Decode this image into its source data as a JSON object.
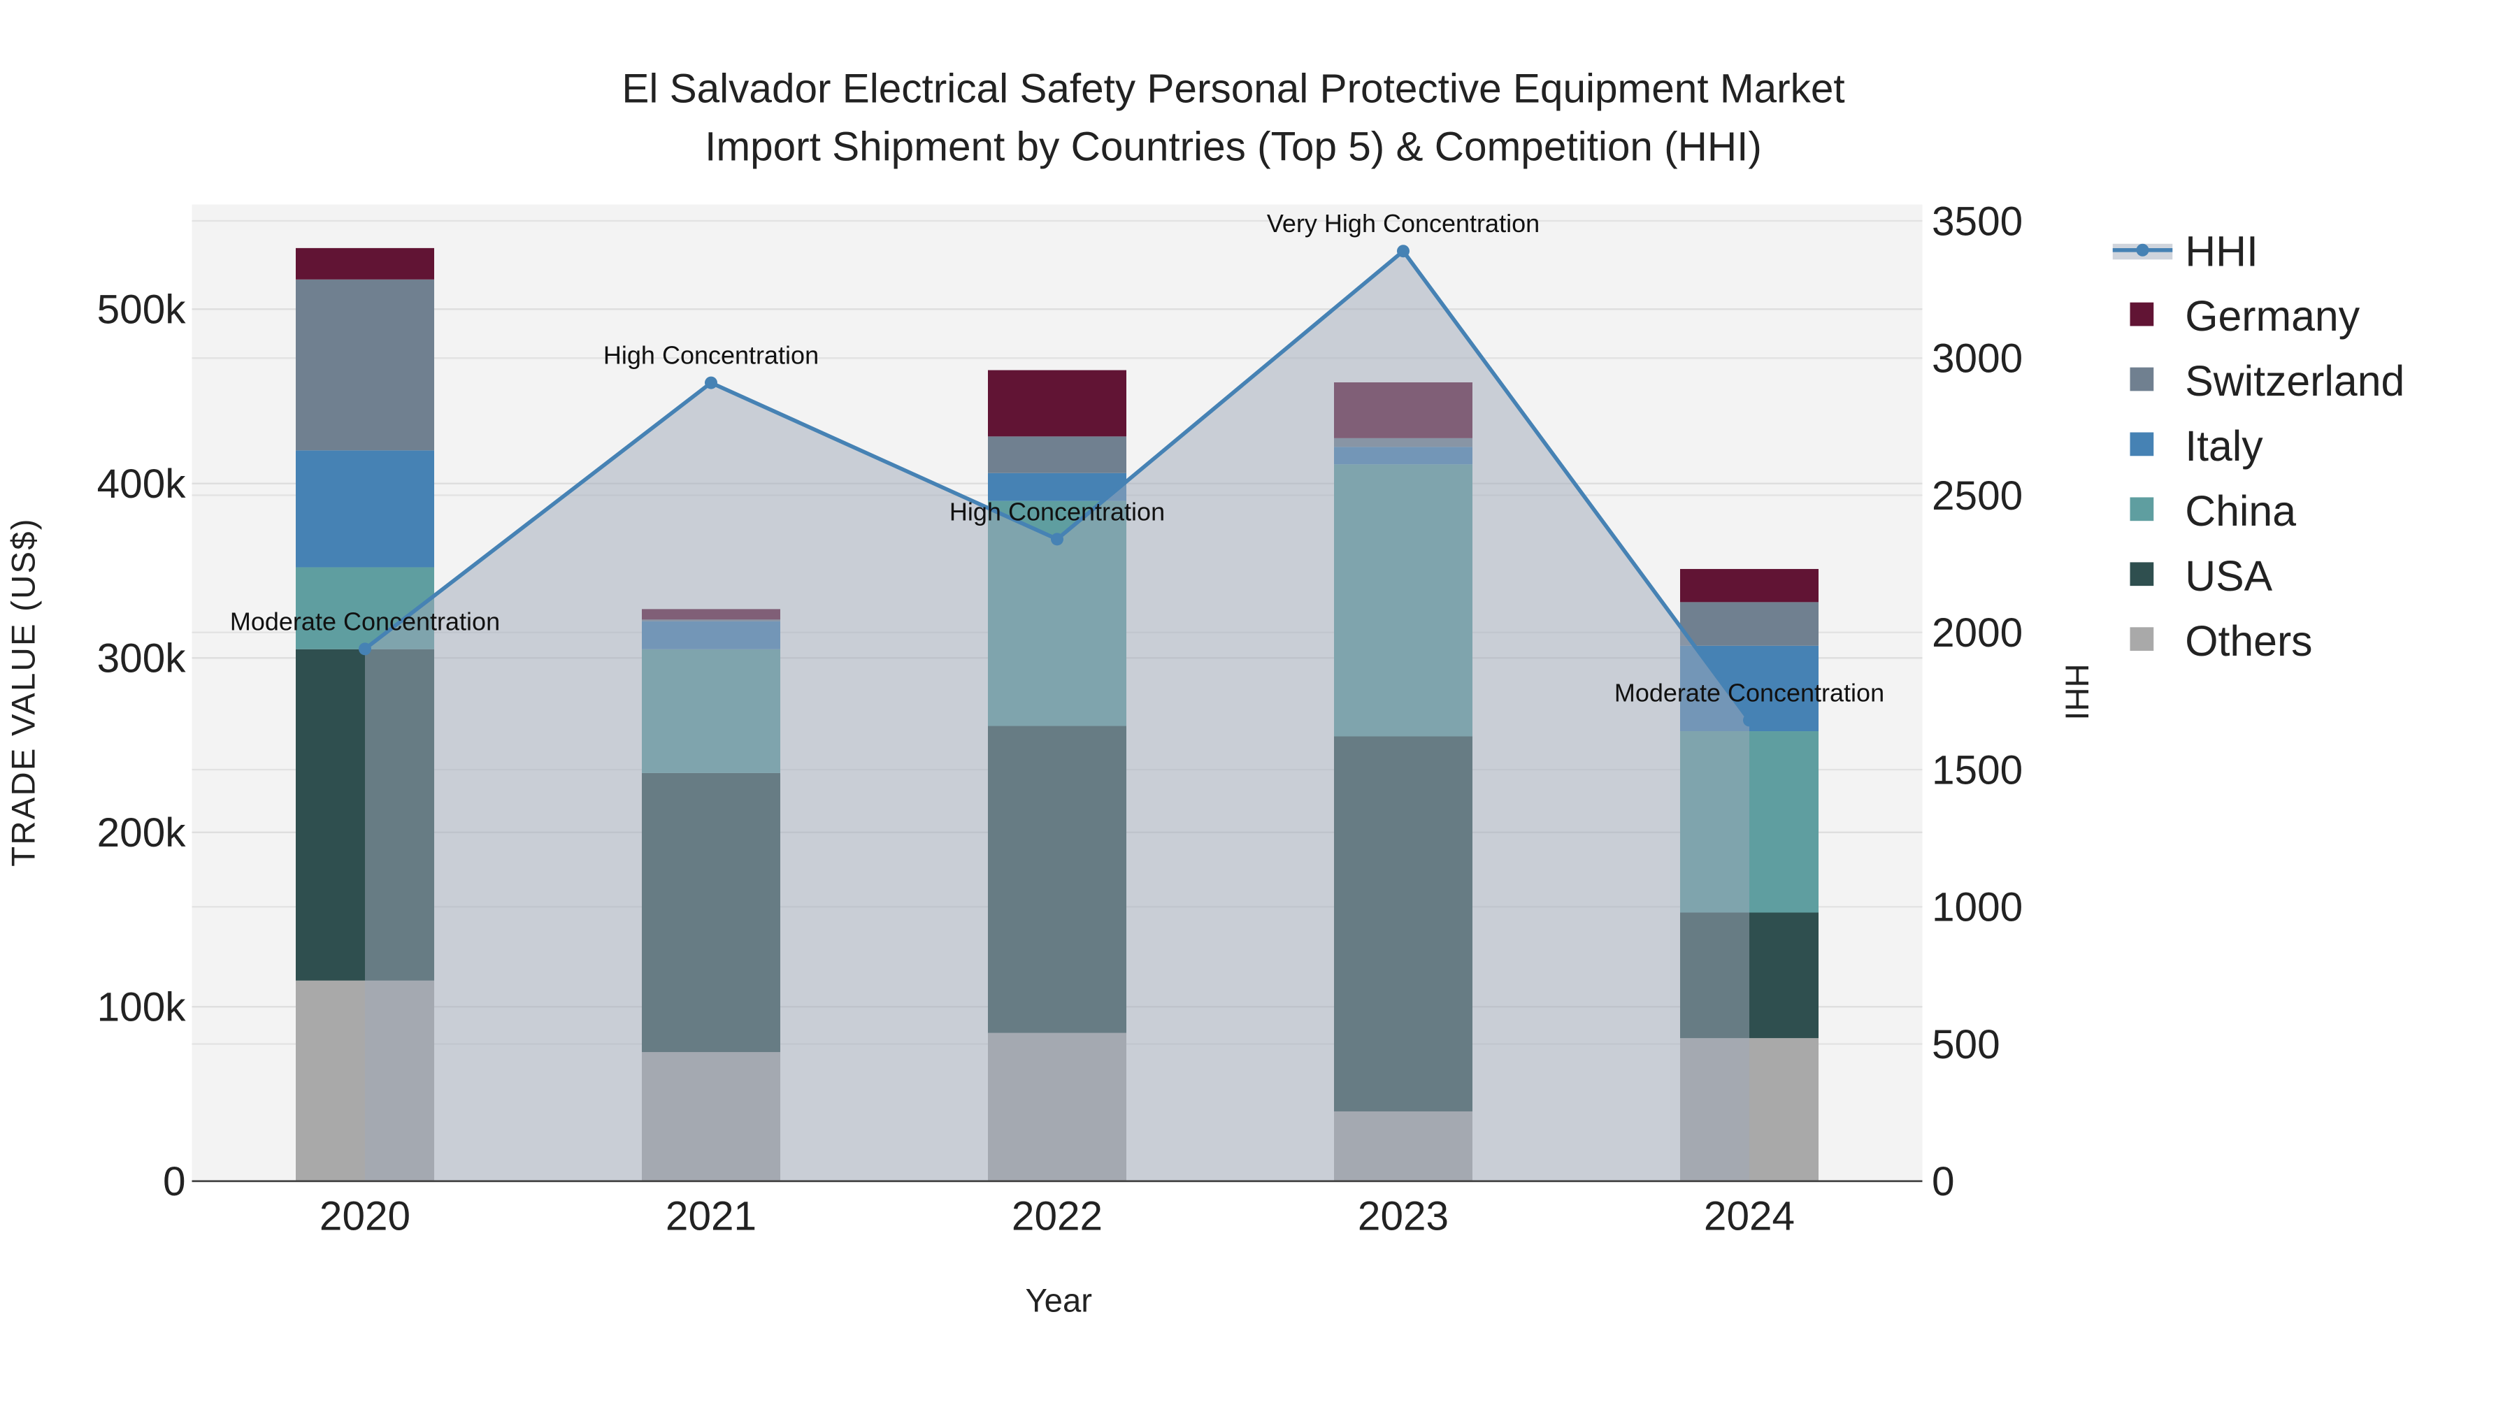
{
  "chart_data": {
    "type": "bar",
    "stacked": true,
    "title": "El Salvador Electrical Safety Personal Protective Equipment Market",
    "subtitle": "Import Shipment by Countries (Top 5) & Competition (HHI)",
    "xlabel": "Year",
    "ylabel": "TRADE VALUE (US$)",
    "y2label": "HHI",
    "categories": [
      "2020",
      "2021",
      "2022",
      "2023",
      "2024"
    ],
    "ylim": [
      0,
      560000
    ],
    "y2lim": [
      0,
      3560
    ],
    "yticks": [
      0,
      100000,
      200000,
      300000,
      400000,
      500000
    ],
    "ytick_labels": [
      "0",
      "100k",
      "200k",
      "300k",
      "400k",
      "500k"
    ],
    "y2ticks": [
      0,
      500,
      1000,
      1500,
      2000,
      2500,
      3000,
      3500
    ],
    "y2tick_labels": [
      "0",
      "500",
      "1000",
      "1500",
      "2000",
      "2500",
      "3000",
      "3500"
    ],
    "grid": true,
    "legend_position": "right",
    "series": [
      {
        "name": "Others",
        "color": "#A9A9A9",
        "values": [
          115000,
          74000,
          85000,
          40000,
          82000
        ]
      },
      {
        "name": "USA",
        "color": "#2F4F4F",
        "values": [
          190000,
          160000,
          176000,
          215000,
          72000
        ]
      },
      {
        "name": "China",
        "color": "#5F9EA0",
        "values": [
          47000,
          71000,
          129000,
          156000,
          104000
        ]
      },
      {
        "name": "Italy",
        "color": "#4682B4",
        "values": [
          67000,
          16000,
          16000,
          10000,
          49000
        ]
      },
      {
        "name": "Switzerland",
        "color": "#708090",
        "values": [
          98000,
          1000,
          21000,
          5000,
          25000
        ]
      },
      {
        "name": "Germany",
        "color": "#611434",
        "values": [
          18000,
          6000,
          38000,
          32000,
          19000
        ]
      }
    ],
    "hhi": {
      "name": "HHI",
      "color": "#4682B4",
      "values": [
        1940,
        2910,
        2340,
        3390,
        1680
      ],
      "annotations": [
        "Moderate Concentration",
        "High Concentration",
        "High Concentration",
        "Very High Concentration",
        "Moderate Concentration"
      ]
    },
    "legend": [
      "HHI",
      "Germany",
      "Switzerland",
      "Italy",
      "China",
      "USA",
      "Others"
    ]
  }
}
